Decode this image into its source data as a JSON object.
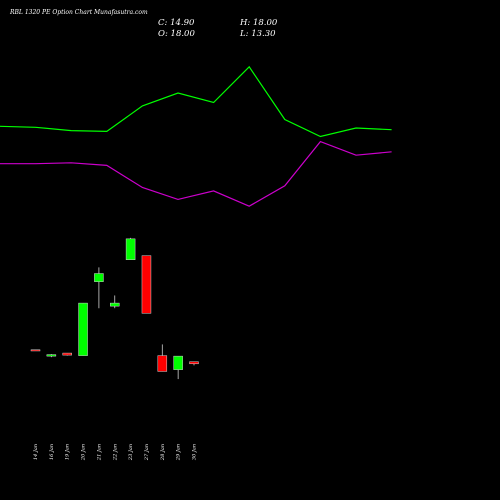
{
  "page": {
    "title": "RBL 1320 PE Option Chart Munafasutra.com"
  },
  "ohlc": {
    "close_label": "C: 14.90",
    "open_label": "O: 18.00",
    "high_label": "H: 18.00",
    "low_label": "L: 13.30"
  },
  "colors": {
    "background": "#000000",
    "bull": "#00ff00",
    "bear": "#ff0000",
    "upper_line": "#00ff00",
    "lower_line": "#cc00cc"
  },
  "chart_data": {
    "type": "candlestick",
    "categories": [
      "14 Jan",
      "16 Jan",
      "19 Jan",
      "20 Jan",
      "21 Jan",
      "22 Jan",
      "23 Jan",
      "27 Jan",
      "28 Jan",
      "29 Jan",
      "30 Jan"
    ],
    "candles": [
      {
        "open": 29.55,
        "high": 29.7,
        "low": 29.1,
        "close": 29.25
      },
      {
        "open": 25.8,
        "high": 27.0,
        "low": 25.2,
        "close": 26.7
      },
      {
        "open": 27.6,
        "high": 27.6,
        "low": 26.1,
        "close": 26.4
      },
      {
        "open": 26.1,
        "high": 57.0,
        "low": 26.1,
        "close": 57.0
      },
      {
        "open": 69.6,
        "high": 78.0,
        "low": 54.0,
        "close": 74.4
      },
      {
        "open": 55.2,
        "high": 61.5,
        "low": 54.0,
        "close": 57.0
      },
      {
        "open": 82.5,
        "high": 95.4,
        "low": 82.5,
        "close": 94.8
      },
      {
        "open": 84.9,
        "high": 84.9,
        "low": 51.0,
        "close": 51.0
      },
      {
        "open": 26.1,
        "high": 32.7,
        "low": 16.8,
        "close": 16.8
      },
      {
        "open": 17.85,
        "high": 25.8,
        "low": 12.3,
        "close": 25.8
      },
      {
        "open": 22.5,
        "high": 22.5,
        "low": 20.4,
        "close": 21.3
      }
    ],
    "upper_line": [
      161.0,
      160.4,
      158.5,
      158.0,
      173.0,
      180.6,
      175.0,
      196.0,
      165.0,
      155.0,
      160.0,
      159.0
    ],
    "lower_line": [
      139.0,
      139.0,
      139.5,
      138.0,
      125.0,
      118.0,
      123.0,
      114.0,
      126.0,
      152.0,
      144.0,
      146.0
    ],
    "ylim": [
      0,
      200
    ]
  }
}
